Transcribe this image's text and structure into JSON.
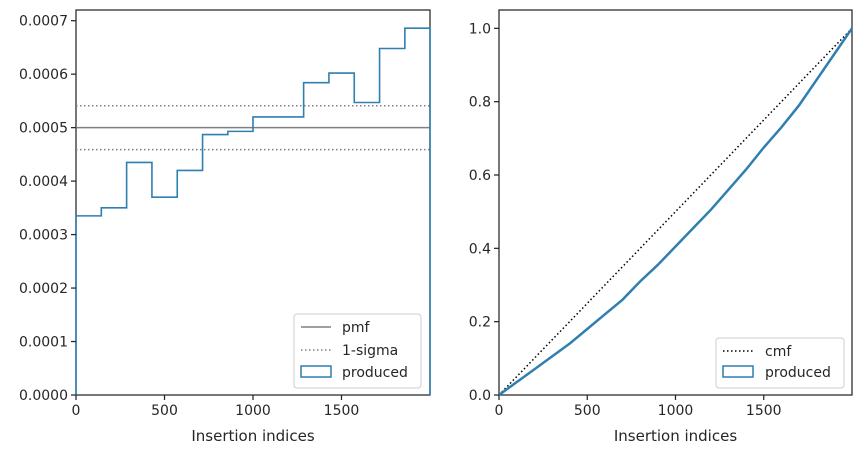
{
  "colors": {
    "hist": "#2f7fb0",
    "pmf": "#808080",
    "sigma": "#808080",
    "cmf": "#000000",
    "axes": "#262626"
  },
  "chart_data": [
    {
      "type": "histogram",
      "xlabel": "Insertion indices",
      "ylabel": "",
      "xlim": [
        0,
        2000
      ],
      "ylim": [
        0,
        0.00072
      ],
      "x_ticks": [
        0,
        500,
        1000,
        1500
      ],
      "x_tick_labels": [
        "0",
        "500",
        "1000",
        "1500"
      ],
      "y_ticks": [
        0,
        0.0001,
        0.0002,
        0.0003,
        0.0004,
        0.0005,
        0.0006,
        0.0007
      ],
      "y_tick_labels": [
        "0.0000",
        "0.0001",
        "0.0002",
        "0.0003",
        "0.0004",
        "0.0005",
        "0.0006",
        "0.0007"
      ],
      "bin_edges": [
        0,
        143,
        286,
        429,
        572,
        715,
        858,
        1000,
        1143,
        1286,
        1429,
        1572,
        1715,
        1858,
        2000
      ],
      "values": [
        0.000335,
        0.00035,
        0.000435,
        0.00037,
        0.00042,
        0.000487,
        0.000493,
        0.00052,
        0.00052,
        0.000584,
        0.000602,
        0.000547,
        0.000648,
        0.000686
      ],
      "pmf": 0.0005,
      "sigma_band": [
        0.000459,
        0.000541
      ],
      "legend": {
        "position": "lower right",
        "entries": [
          {
            "label": "pmf",
            "style": "solid"
          },
          {
            "label": "1-sigma",
            "style": "dotted"
          },
          {
            "label": "produced",
            "style": "patch"
          }
        ]
      }
    },
    {
      "type": "line",
      "xlabel": "Insertion indices",
      "ylabel": "",
      "xlim": [
        0,
        2000
      ],
      "ylim": [
        0,
        1.05
      ],
      "x_ticks": [
        0,
        500,
        1000,
        1500
      ],
      "x_tick_labels": [
        "0",
        "500",
        "1000",
        "1500"
      ],
      "y_ticks": [
        0,
        0.2,
        0.4,
        0.6,
        0.8,
        1.0
      ],
      "y_tick_labels": [
        "0.0",
        "0.2",
        "0.4",
        "0.6",
        "0.8",
        "1.0"
      ],
      "cmf": {
        "x": [
          0,
          2000
        ],
        "y": [
          0,
          1
        ]
      },
      "produced": {
        "x": [
          0,
          100,
          200,
          300,
          400,
          500,
          600,
          700,
          800,
          900,
          1000,
          1100,
          1200,
          1300,
          1400,
          1500,
          1600,
          1700,
          1800,
          1900,
          2000
        ],
        "y": [
          0,
          0.035,
          0.07,
          0.105,
          0.14,
          0.18,
          0.22,
          0.26,
          0.31,
          0.355,
          0.405,
          0.455,
          0.505,
          0.56,
          0.615,
          0.675,
          0.73,
          0.79,
          0.86,
          0.93,
          1.0
        ]
      },
      "legend": {
        "position": "lower right",
        "entries": [
          {
            "label": "cmf",
            "style": "dotted"
          },
          {
            "label": "produced",
            "style": "patch"
          }
        ]
      }
    }
  ]
}
